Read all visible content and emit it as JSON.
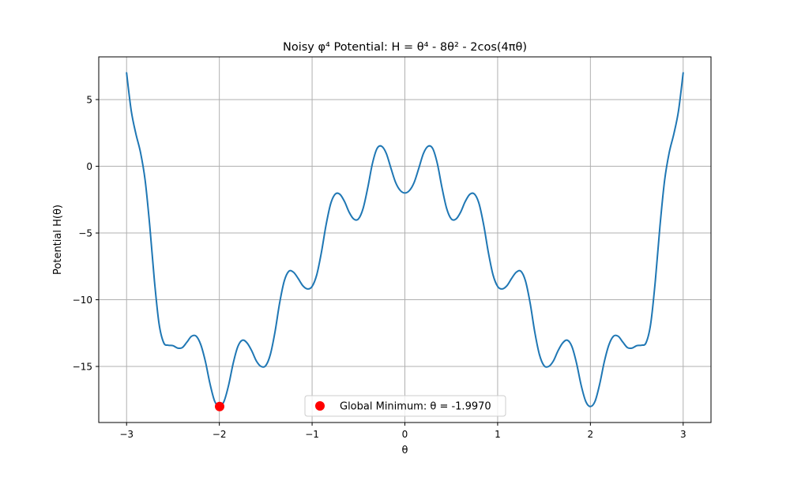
{
  "chart_data": {
    "type": "line",
    "title": "Noisy φ⁴ Potential: H = θ⁴ - 8θ² - 2cos(4πθ)",
    "xlabel": "θ",
    "ylabel": "Potential H(θ)",
    "xlim": [
      -3.3,
      3.3
    ],
    "ylim": [
      -19.2,
      8.2
    ],
    "xticks": [
      {
        "value": -3,
        "label": "−3"
      },
      {
        "value": -2,
        "label": "−2"
      },
      {
        "value": -1,
        "label": "−1"
      },
      {
        "value": 0,
        "label": "0"
      },
      {
        "value": 1,
        "label": "1"
      },
      {
        "value": 2,
        "label": "2"
      },
      {
        "value": 3,
        "label": "3"
      }
    ],
    "yticks": [
      {
        "value": -15,
        "label": "−15"
      },
      {
        "value": -10,
        "label": "−10"
      },
      {
        "value": -5,
        "label": "−5"
      },
      {
        "value": 0,
        "label": "0"
      },
      {
        "value": 5,
        "label": "5"
      }
    ],
    "grid": true,
    "legend_position": "lower center",
    "series": [
      {
        "type": "line",
        "color": "#1f77b4",
        "x_range": [
          -3,
          3
        ],
        "points": [
          [
            -3.0,
            7.0
          ],
          [
            -2.95,
            4.17
          ],
          [
            -2.9,
            2.44
          ],
          [
            -2.85,
            1.04
          ],
          [
            -2.8,
            -1.05
          ],
          [
            -2.75,
            -4.47
          ],
          [
            -2.7,
            -8.57
          ],
          [
            -2.65,
            -11.8
          ],
          [
            -2.6,
            -13.22
          ],
          [
            -2.55,
            -13.41
          ],
          [
            -2.5,
            -13.44
          ],
          [
            -2.45,
            -13.62
          ],
          [
            -2.4,
            -13.59
          ],
          [
            -2.35,
            -13.18
          ],
          [
            -2.3,
            -12.74
          ],
          [
            -2.25,
            -12.73
          ],
          [
            -2.2,
            -13.37
          ],
          [
            -2.15,
            -14.64
          ],
          [
            -2.1,
            -16.32
          ],
          [
            -2.05,
            -17.61
          ],
          [
            -2.0,
            -18.0
          ],
          [
            -1.95,
            -17.62
          ],
          [
            -1.9,
            -16.4
          ],
          [
            -1.85,
            -14.74
          ],
          [
            -1.8,
            -13.5
          ],
          [
            -1.75,
            -13.03
          ],
          [
            -1.7,
            -13.25
          ],
          [
            -1.65,
            -13.84
          ],
          [
            -1.6,
            -14.6
          ],
          [
            -1.55,
            -15.0
          ],
          [
            -1.5,
            -14.94
          ],
          [
            -1.45,
            -14.1
          ],
          [
            -1.4,
            -12.41
          ],
          [
            -1.35,
            -10.24
          ],
          [
            -1.3,
            -8.59
          ],
          [
            -1.25,
            -7.86
          ],
          [
            -1.2,
            -7.94
          ],
          [
            -1.15,
            -8.41
          ],
          [
            -1.1,
            -8.95
          ],
          [
            -1.05,
            -9.19
          ],
          [
            -1.0,
            -9.0
          ],
          [
            -0.95,
            -8.13
          ],
          [
            -0.9,
            -6.46
          ],
          [
            -0.85,
            -4.41
          ],
          [
            -0.8,
            -2.81
          ],
          [
            -0.75,
            -2.08
          ],
          [
            -0.7,
            -2.1
          ],
          [
            -0.65,
            -2.65
          ],
          [
            -0.6,
            -3.45
          ],
          [
            -0.55,
            -3.96
          ],
          [
            -0.5,
            -3.94
          ],
          [
            -0.45,
            -3.15
          ],
          [
            -0.4,
            -1.6
          ],
          [
            -0.35,
            0.2
          ],
          [
            -0.3,
            1.33
          ],
          [
            -0.25,
            1.5
          ],
          [
            -0.2,
            0.96
          ],
          [
            -0.15,
            -0.15
          ],
          [
            -0.1,
            -1.21
          ],
          [
            -0.05,
            -1.81
          ],
          [
            0.0,
            -2.0
          ],
          [
            0.05,
            -1.81
          ],
          [
            0.1,
            -1.21
          ],
          [
            0.15,
            -0.15
          ],
          [
            0.2,
            0.96
          ],
          [
            0.25,
            1.5
          ],
          [
            0.3,
            1.33
          ],
          [
            0.35,
            0.2
          ],
          [
            0.4,
            -1.6
          ],
          [
            0.45,
            -3.15
          ],
          [
            0.5,
            -3.94
          ],
          [
            0.55,
            -3.96
          ],
          [
            0.6,
            -3.45
          ],
          [
            0.65,
            -2.65
          ],
          [
            0.7,
            -2.1
          ],
          [
            0.75,
            -2.08
          ],
          [
            0.8,
            -2.81
          ],
          [
            0.85,
            -4.41
          ],
          [
            0.9,
            -6.46
          ],
          [
            0.95,
            -8.13
          ],
          [
            1.0,
            -9.0
          ],
          [
            1.05,
            -9.19
          ],
          [
            1.1,
            -8.95
          ],
          [
            1.15,
            -8.41
          ],
          [
            1.2,
            -7.94
          ],
          [
            1.25,
            -7.86
          ],
          [
            1.3,
            -8.59
          ],
          [
            1.35,
            -10.24
          ],
          [
            1.4,
            -12.41
          ],
          [
            1.45,
            -14.1
          ],
          [
            1.5,
            -14.94
          ],
          [
            1.55,
            -15.0
          ],
          [
            1.6,
            -14.6
          ],
          [
            1.65,
            -13.84
          ],
          [
            1.7,
            -13.25
          ],
          [
            1.75,
            -13.03
          ],
          [
            1.8,
            -13.5
          ],
          [
            1.85,
            -14.74
          ],
          [
            1.9,
            -16.4
          ],
          [
            1.95,
            -17.62
          ],
          [
            2.0,
            -18.0
          ],
          [
            2.05,
            -17.61
          ],
          [
            2.1,
            -16.32
          ],
          [
            2.15,
            -14.64
          ],
          [
            2.2,
            -13.37
          ],
          [
            2.25,
            -12.73
          ],
          [
            2.3,
            -12.74
          ],
          [
            2.35,
            -13.18
          ],
          [
            2.4,
            -13.59
          ],
          [
            2.45,
            -13.62
          ],
          [
            2.5,
            -13.44
          ],
          [
            2.55,
            -13.41
          ],
          [
            2.6,
            -13.22
          ],
          [
            2.65,
            -11.8
          ],
          [
            2.7,
            -8.57
          ],
          [
            2.75,
            -4.47
          ],
          [
            2.8,
            -1.05
          ],
          [
            2.85,
            1.04
          ],
          [
            2.9,
            2.44
          ],
          [
            2.95,
            4.17
          ],
          [
            3.0,
            7.0
          ]
        ]
      },
      {
        "type": "scatter",
        "name": "Global Minimum: θ = -1.9970",
        "color": "#ff0000",
        "points": [
          [
            -1.997,
            -18.0
          ]
        ]
      }
    ]
  }
}
